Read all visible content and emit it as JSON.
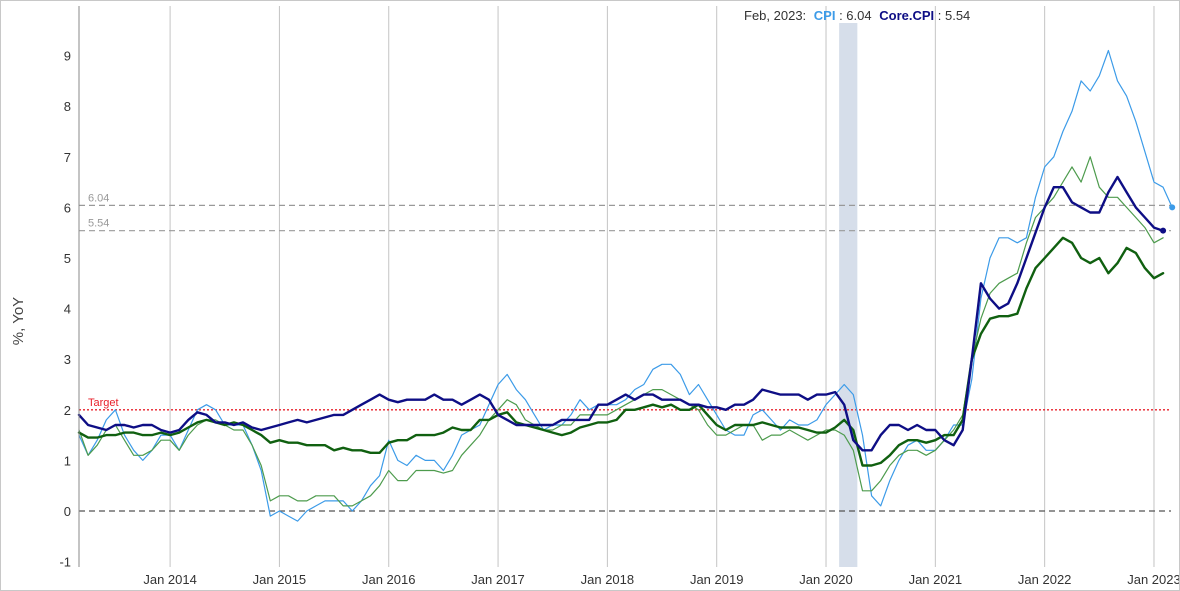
{
  "header": {
    "date": "Feb, 2023:",
    "cpi_label": "CPI",
    "cpi_value": ": 6.04",
    "core_label": "Core.CPI",
    "core_value": ": 5.54"
  },
  "chart_data": {
    "type": "line",
    "title": "",
    "xlabel": "",
    "ylabel": "%, YoY",
    "ylim": [
      -1,
      9.5
    ],
    "yticks": [
      "-1",
      "0",
      "1",
      "2",
      "3",
      "4",
      "5",
      "6",
      "7",
      "8",
      "9"
    ],
    "xticks": [
      "Jan 2014",
      "Jan 2015",
      "Jan 2016",
      "Jan 2017",
      "Jan 2018",
      "Jan 2019",
      "Jan 2020",
      "Jan 2021",
      "Jan 2022",
      "Jan 2023"
    ],
    "grid": "vertical at each January",
    "x_start": "2013-03",
    "x_end": "2023-02",
    "recession_band": {
      "start": "2020-02",
      "end": "2020-04"
    },
    "reference_lines": [
      {
        "label": "Target",
        "value": 2.0,
        "color": "#e8212b",
        "style": "dotted"
      },
      {
        "label": "6.04",
        "value": 6.04,
        "color": "#999999",
        "style": "dashed"
      },
      {
        "label": "5.54",
        "value": 5.54,
        "color": "#999999",
        "style": "dashed"
      },
      {
        "label": "",
        "value": 0,
        "color": "#555555",
        "style": "dashed"
      }
    ],
    "series": [
      {
        "name": "CPI",
        "color": "#3c9be8",
        "width": 1.2,
        "values": [
          1.5,
          1.1,
          1.4,
          1.8,
          2.0,
          1.5,
          1.2,
          1.0,
          1.2,
          1.5,
          1.5,
          1.2,
          1.6,
          2.0,
          2.1,
          2.0,
          1.7,
          1.7,
          1.7,
          1.3,
          0.8,
          -0.1,
          0.0,
          -0.1,
          -0.2,
          0.0,
          0.1,
          0.2,
          0.2,
          0.2,
          0.0,
          0.2,
          0.5,
          0.7,
          1.4,
          1.0,
          0.9,
          1.1,
          1.0,
          1.0,
          0.8,
          1.1,
          1.5,
          1.6,
          1.7,
          2.1,
          2.5,
          2.7,
          2.4,
          2.2,
          1.9,
          1.6,
          1.7,
          1.7,
          1.9,
          2.2,
          2.0,
          2.1,
          2.1,
          2.1,
          2.2,
          2.4,
          2.5,
          2.8,
          2.9,
          2.9,
          2.7,
          2.3,
          2.5,
          2.2,
          1.9,
          1.6,
          1.5,
          1.5,
          1.9,
          2.0,
          1.8,
          1.6,
          1.8,
          1.7,
          1.7,
          1.8,
          2.1,
          2.3,
          2.5,
          2.3,
          1.5,
          0.3,
          0.1,
          0.6,
          1.0,
          1.3,
          1.4,
          1.2,
          1.2,
          1.4,
          1.7,
          1.7,
          2.6,
          4.2,
          5.0,
          5.4,
          5.4,
          5.3,
          5.4,
          6.2,
          6.8,
          7.0,
          7.5,
          7.9,
          8.5,
          8.3,
          8.6,
          9.1,
          8.5,
          8.2,
          7.7,
          7.1,
          6.5,
          6.4,
          6.0
        ]
      },
      {
        "name": "Core.CPI",
        "color": "#0e0e85",
        "width": 2.4,
        "values": [
          1.9,
          1.7,
          1.65,
          1.6,
          1.7,
          1.7,
          1.65,
          1.7,
          1.7,
          1.6,
          1.55,
          1.6,
          1.8,
          1.95,
          1.9,
          1.75,
          1.75,
          1.7,
          1.75,
          1.65,
          1.6,
          1.65,
          1.7,
          1.75,
          1.8,
          1.75,
          1.8,
          1.85,
          1.9,
          1.9,
          2.0,
          2.1,
          2.2,
          2.3,
          2.2,
          2.15,
          2.2,
          2.2,
          2.2,
          2.3,
          2.2,
          2.2,
          2.1,
          2.2,
          2.3,
          2.2,
          1.9,
          1.8,
          1.7,
          1.7,
          1.7,
          1.7,
          1.7,
          1.8,
          1.8,
          1.8,
          1.8,
          2.1,
          2.1,
          2.2,
          2.3,
          2.2,
          2.3,
          2.3,
          2.2,
          2.2,
          2.2,
          2.1,
          2.1,
          2.05,
          2.05,
          2.0,
          2.1,
          2.1,
          2.2,
          2.4,
          2.35,
          2.3,
          2.3,
          2.3,
          2.2,
          2.3,
          2.3,
          2.35,
          2.1,
          1.4,
          1.2,
          1.2,
          1.5,
          1.7,
          1.7,
          1.6,
          1.7,
          1.6,
          1.6,
          1.4,
          1.3,
          1.6,
          3.0,
          4.5,
          4.2,
          4.0,
          4.1,
          4.5,
          5.0,
          5.5,
          6.0,
          6.4,
          6.4,
          6.1,
          6.0,
          5.9,
          5.9,
          6.3,
          6.6,
          6.3,
          6.0,
          5.8,
          5.6,
          5.54
        ]
      },
      {
        "name": "",
        "color": "#4d9b4d",
        "width": 1.2,
        "values": [
          1.6,
          1.1,
          1.3,
          1.6,
          1.7,
          1.4,
          1.1,
          1.1,
          1.2,
          1.4,
          1.4,
          1.2,
          1.5,
          1.7,
          1.8,
          1.8,
          1.7,
          1.6,
          1.6,
          1.3,
          0.9,
          0.2,
          0.3,
          0.3,
          0.2,
          0.2,
          0.3,
          0.3,
          0.3,
          0.1,
          0.1,
          0.2,
          0.3,
          0.5,
          0.8,
          0.6,
          0.6,
          0.8,
          0.8,
          0.8,
          0.75,
          0.8,
          1.1,
          1.3,
          1.5,
          1.8,
          2.0,
          2.2,
          2.1,
          1.8,
          1.7,
          1.6,
          1.6,
          1.7,
          1.7,
          1.9,
          1.9,
          1.9,
          1.9,
          2.0,
          2.1,
          2.2,
          2.3,
          2.4,
          2.4,
          2.3,
          2.2,
          2.1,
          2.0,
          1.7,
          1.5,
          1.5,
          1.6,
          1.7,
          1.7,
          1.4,
          1.5,
          1.5,
          1.6,
          1.5,
          1.4,
          1.5,
          1.6,
          1.6,
          1.5,
          1.2,
          0.4,
          0.4,
          0.6,
          0.9,
          1.1,
          1.2,
          1.2,
          1.1,
          1.2,
          1.4,
          1.6,
          1.9,
          3.0,
          3.8,
          4.3,
          4.5,
          4.6,
          4.7,
          5.3,
          5.8,
          6.0,
          6.2,
          6.5,
          6.8,
          6.5,
          7.0,
          6.4,
          6.2,
          6.2,
          6.0,
          5.8,
          5.6,
          5.3,
          5.4
        ]
      },
      {
        "name": "",
        "color": "#106010",
        "width": 2.4,
        "values": [
          1.55,
          1.45,
          1.45,
          1.5,
          1.5,
          1.55,
          1.55,
          1.5,
          1.5,
          1.55,
          1.5,
          1.55,
          1.65,
          1.75,
          1.8,
          1.75,
          1.7,
          1.75,
          1.7,
          1.6,
          1.5,
          1.35,
          1.4,
          1.35,
          1.35,
          1.3,
          1.3,
          1.3,
          1.2,
          1.25,
          1.2,
          1.2,
          1.15,
          1.15,
          1.35,
          1.4,
          1.4,
          1.5,
          1.5,
          1.5,
          1.55,
          1.65,
          1.6,
          1.6,
          1.8,
          1.8,
          1.9,
          1.95,
          1.75,
          1.7,
          1.65,
          1.6,
          1.55,
          1.5,
          1.55,
          1.65,
          1.7,
          1.75,
          1.75,
          1.8,
          2.0,
          2.0,
          2.05,
          2.1,
          2.05,
          2.1,
          2.0,
          2.0,
          2.1,
          1.9,
          1.7,
          1.6,
          1.7,
          1.7,
          1.7,
          1.75,
          1.7,
          1.65,
          1.65,
          1.65,
          1.6,
          1.55,
          1.55,
          1.65,
          1.8,
          1.6,
          0.9,
          0.9,
          0.95,
          1.1,
          1.3,
          1.4,
          1.4,
          1.35,
          1.4,
          1.5,
          1.5,
          1.8,
          3.0,
          3.5,
          3.8,
          3.85,
          3.85,
          3.9,
          4.4,
          4.8,
          5.0,
          5.2,
          5.4,
          5.3,
          5.0,
          4.9,
          5.0,
          4.7,
          4.9,
          5.2,
          5.1,
          4.8,
          4.6,
          4.7
        ]
      }
    ]
  }
}
